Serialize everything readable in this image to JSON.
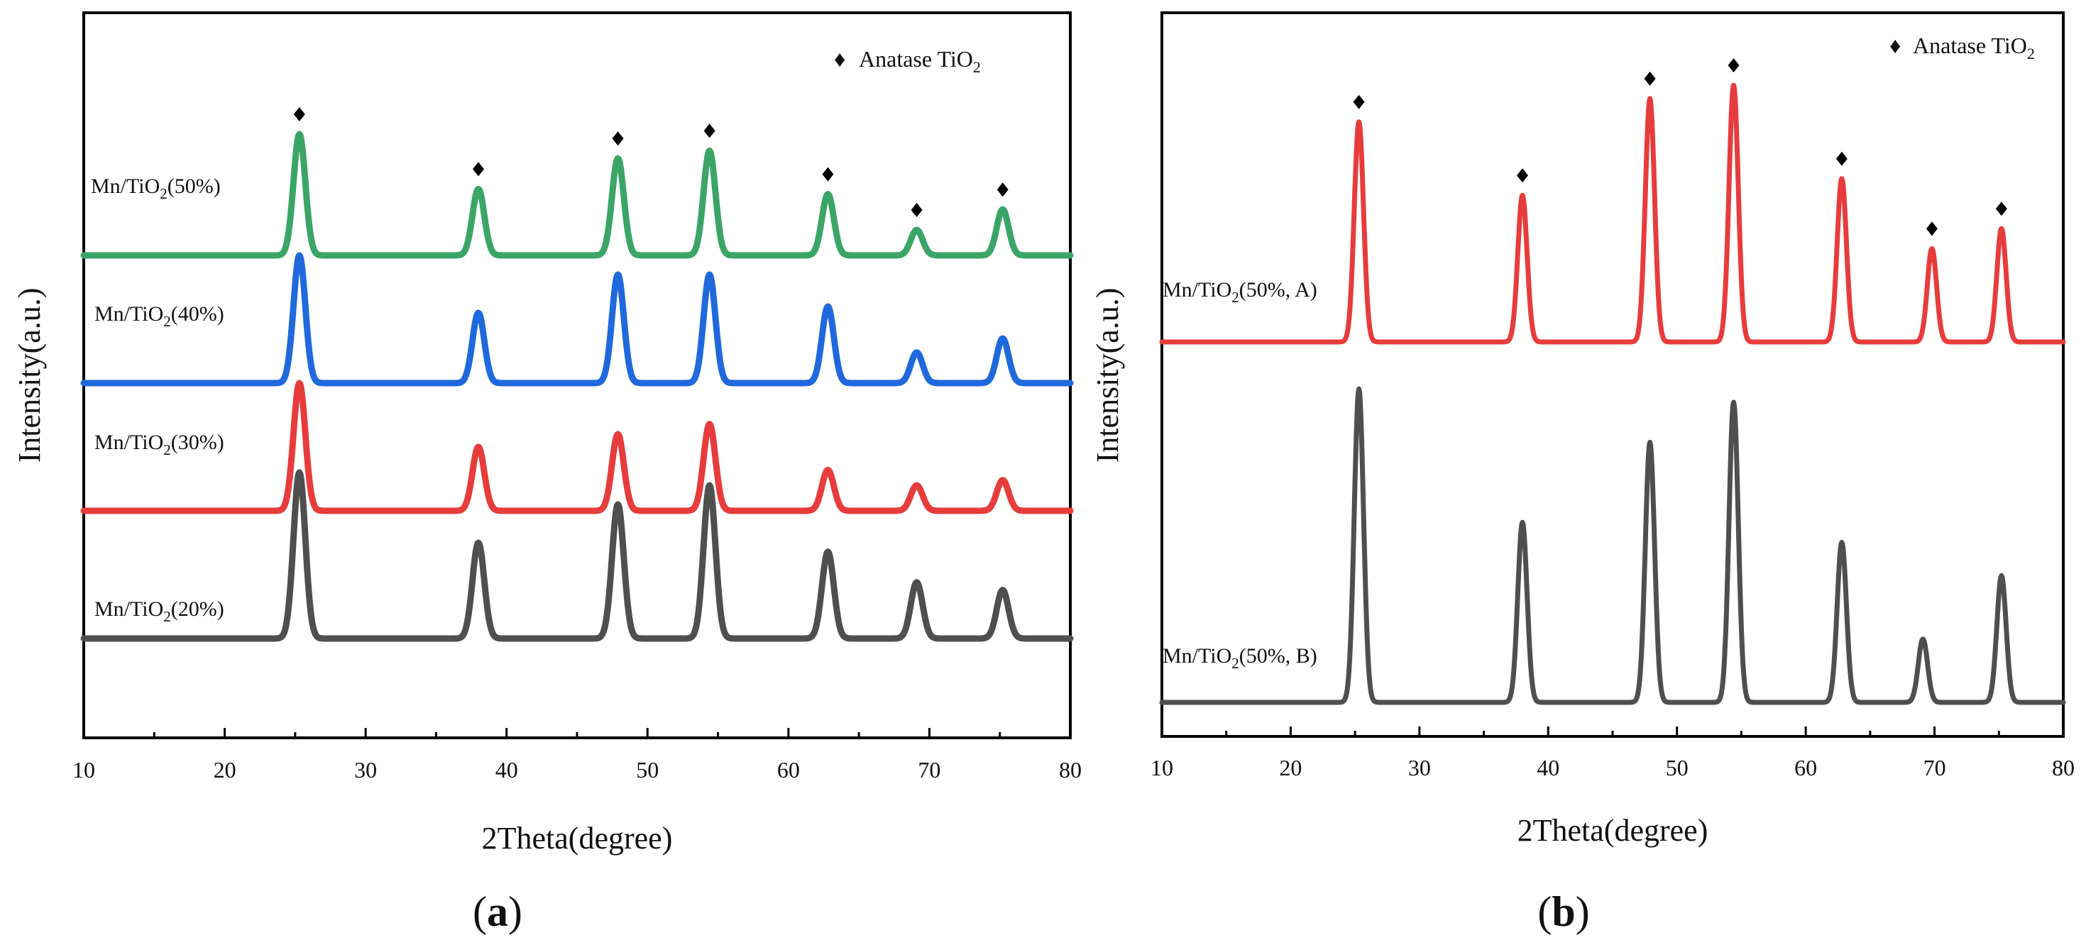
{
  "figure_labels": {
    "a": "a",
    "b": "b",
    "open_paren": "(",
    "close_paren": ")"
  },
  "chart_data": [
    {
      "id": "a",
      "type": "line",
      "title": "",
      "xlabel": "2Theta(degree)",
      "ylabel": "Intensity(a.u.)",
      "xlim": [
        10,
        80
      ],
      "xticks": [
        10,
        20,
        30,
        40,
        50,
        60,
        70,
        80
      ],
      "yticks_shown": false,
      "legend": {
        "marker": "♦",
        "text": "Anatase TiO",
        "subscript": "2",
        "placement": "top-right"
      },
      "peak_marker_positions": [
        25.3,
        38.0,
        47.9,
        54.4,
        62.8,
        69.1,
        75.2
      ],
      "series": [
        {
          "name": "Mn/TiO2(50%)",
          "label_prefix": "Mn/TiO",
          "label_sub": "2",
          "label_suffix": "(50%)",
          "color": "#3aa567",
          "baseline_offset": 3.0,
          "has_markers": true,
          "peaks": [
            {
              "x": 25.3,
              "h": 0.95
            },
            {
              "x": 38.0,
              "h": 0.52
            },
            {
              "x": 47.9,
              "h": 0.76
            },
            {
              "x": 54.4,
              "h": 0.82
            },
            {
              "x": 62.8,
              "h": 0.48
            },
            {
              "x": 69.1,
              "h": 0.2
            },
            {
              "x": 75.2,
              "h": 0.36
            }
          ]
        },
        {
          "name": "Mn/TiO2(40%)",
          "label_prefix": "Mn/TiO",
          "label_sub": "2",
          "label_suffix": "(40%)",
          "color": "#1f69dc",
          "baseline_offset": 2.0,
          "has_markers": false,
          "peaks": [
            {
              "x": 25.3,
              "h": 1.0
            },
            {
              "x": 38.0,
              "h": 0.55
            },
            {
              "x": 47.9,
              "h": 0.85
            },
            {
              "x": 54.4,
              "h": 0.85
            },
            {
              "x": 62.8,
              "h": 0.6
            },
            {
              "x": 69.1,
              "h": 0.24
            },
            {
              "x": 75.2,
              "h": 0.35
            }
          ]
        },
        {
          "name": "Mn/TiO2(30%)",
          "label_prefix": "Mn/TiO",
          "label_sub": "2",
          "label_suffix": "(30%)",
          "color": "#e73c3c",
          "baseline_offset": 1.0,
          "has_markers": false,
          "peaks": [
            {
              "x": 25.3,
              "h": 1.0
            },
            {
              "x": 38.0,
              "h": 0.5
            },
            {
              "x": 47.9,
              "h": 0.6
            },
            {
              "x": 54.4,
              "h": 0.68
            },
            {
              "x": 62.8,
              "h": 0.32
            },
            {
              "x": 69.1,
              "h": 0.2
            },
            {
              "x": 75.2,
              "h": 0.24
            }
          ]
        },
        {
          "name": "Mn/TiO2(20%)",
          "label_prefix": "Mn/TiO",
          "label_sub": "2",
          "label_suffix": "(20%)",
          "color": "#4f4f4f",
          "baseline_offset": 0.0,
          "has_markers": false,
          "peaks": [
            {
              "x": 25.3,
              "h": 1.3
            },
            {
              "x": 38.0,
              "h": 0.75
            },
            {
              "x": 47.9,
              "h": 1.05
            },
            {
              "x": 54.4,
              "h": 1.2
            },
            {
              "x": 62.8,
              "h": 0.68
            },
            {
              "x": 69.1,
              "h": 0.44
            },
            {
              "x": 75.2,
              "h": 0.38
            }
          ]
        }
      ]
    },
    {
      "id": "b",
      "type": "line",
      "title": "",
      "xlabel": "2Theta(degree)",
      "ylabel": "Intensity(a.u.)",
      "xlim": [
        10,
        80
      ],
      "xticks": [
        10,
        20,
        30,
        40,
        50,
        60,
        70,
        80
      ],
      "yticks_shown": false,
      "legend": {
        "marker": "♦",
        "text": "Anatase TiO",
        "subscript": "2",
        "placement": "top-right"
      },
      "peak_marker_positions": [
        25.3,
        38.0,
        47.9,
        54.4,
        62.8,
        69.8,
        75.2
      ],
      "series": [
        {
          "name": "Mn/TiO2(50%, A)",
          "label_prefix": "Mn/TiO",
          "label_sub": "2",
          "label_suffix": "(50%, A)",
          "color": "#e73c3c",
          "baseline_offset": 1.0,
          "has_markers": true,
          "peaks": [
            {
              "x": 25.3,
              "h": 0.66
            },
            {
              "x": 38.0,
              "h": 0.44
            },
            {
              "x": 47.9,
              "h": 0.73
            },
            {
              "x": 54.4,
              "h": 0.77
            },
            {
              "x": 62.8,
              "h": 0.49
            },
            {
              "x": 69.8,
              "h": 0.28
            },
            {
              "x": 75.2,
              "h": 0.34
            }
          ]
        },
        {
          "name": "Mn/TiO2(50%, B)",
          "label_prefix": "Mn/TiO",
          "label_sub": "2",
          "label_suffix": "(50%, B)",
          "color": "#4f4f4f",
          "baseline_offset": 0.0,
          "has_markers": false,
          "peaks": [
            {
              "x": 25.3,
              "h": 0.94
            },
            {
              "x": 38.0,
              "h": 0.54
            },
            {
              "x": 47.9,
              "h": 0.78
            },
            {
              "x": 54.4,
              "h": 0.9
            },
            {
              "x": 62.8,
              "h": 0.48
            },
            {
              "x": 69.1,
              "h": 0.19
            },
            {
              "x": 75.2,
              "h": 0.38
            }
          ]
        }
      ]
    }
  ]
}
